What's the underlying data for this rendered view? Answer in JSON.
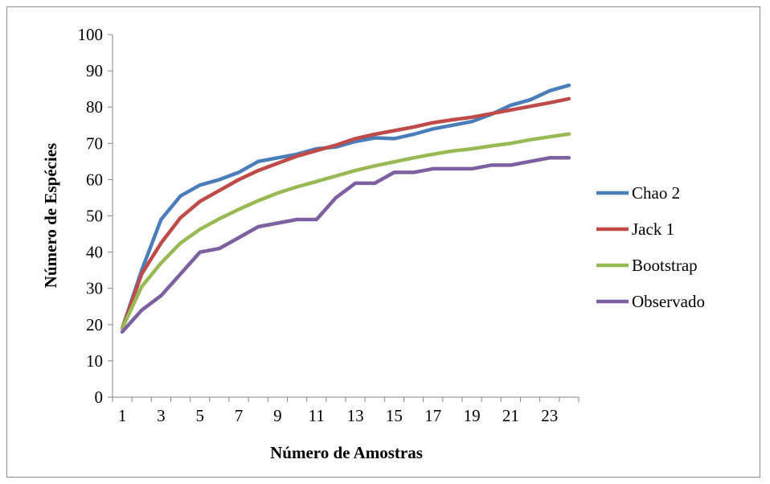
{
  "chart_data": {
    "type": "line",
    "title": "",
    "xlabel": "Número de Amostras",
    "ylabel": "Número de Espécies",
    "ylim": [
      0,
      100
    ],
    "yticks": [
      0,
      10,
      20,
      30,
      40,
      50,
      60,
      70,
      80,
      90,
      100
    ],
    "x": [
      1,
      2,
      3,
      4,
      5,
      6,
      7,
      8,
      9,
      10,
      11,
      12,
      13,
      14,
      15,
      16,
      17,
      18,
      19,
      20,
      21,
      22,
      23,
      24
    ],
    "xtick_labels": [
      "1",
      "3",
      "5",
      "7",
      "9",
      "11",
      "13",
      "15",
      "17",
      "19",
      "21",
      "23"
    ],
    "grid": false,
    "legend_position": "right",
    "series": [
      {
        "name": "Chao 2",
        "color": "#4a7ebb",
        "values": [
          19,
          35,
          49,
          55.5,
          58.5,
          60,
          62,
          65,
          66,
          67,
          68.5,
          69,
          70.5,
          71.5,
          71.3,
          72.5,
          74,
          75,
          76,
          78,
          80.5,
          82,
          84.5,
          86
        ]
      },
      {
        "name": "Jack 1",
        "color": "#be4b48",
        "values": [
          19,
          34,
          42.5,
          49.5,
          54,
          57,
          60,
          62.5,
          64.5,
          66.5,
          68,
          69.5,
          71.3,
          72.5,
          73.5,
          74.5,
          75.7,
          76.5,
          77.2,
          78.2,
          79.2,
          80.2,
          81.2,
          82.3
        ]
      },
      {
        "name": "Bootstrap",
        "color": "#98b954",
        "values": [
          19,
          30.5,
          37,
          42.5,
          46.3,
          49.2,
          51.8,
          54.2,
          56.3,
          58,
          59.5,
          61,
          62.5,
          63.8,
          64.9,
          66,
          67,
          67.9,
          68.5,
          69.3,
          70,
          71,
          71.8,
          72.6
        ]
      },
      {
        "name": "Observado",
        "color": "#7d60a0",
        "values": [
          18,
          24,
          28,
          34,
          40,
          41,
          44,
          47,
          48,
          49,
          49,
          55,
          59,
          59,
          62,
          62,
          63,
          63,
          63,
          64,
          64,
          65,
          66,
          66
        ]
      }
    ]
  }
}
